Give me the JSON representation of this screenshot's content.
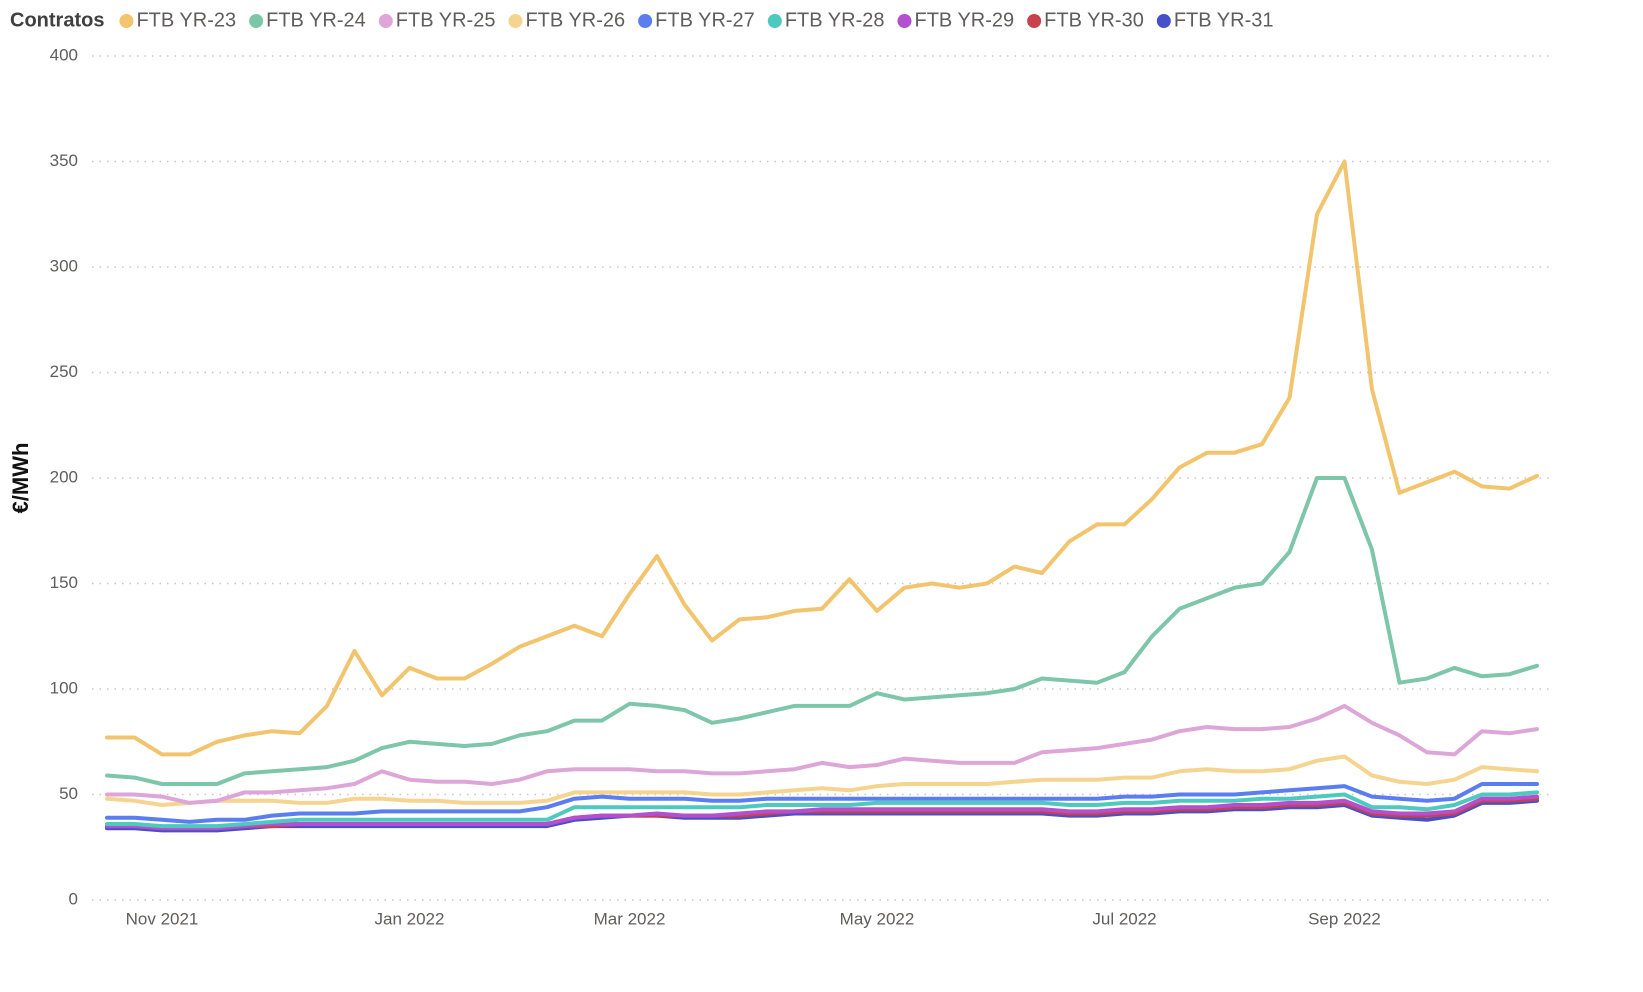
{
  "chart_data": {
    "type": "line",
    "legend_title": "Contratos",
    "y_label": "€/MWh",
    "categories": [
      null,
      null,
      "Nov 2021",
      null,
      null,
      null,
      null,
      null,
      null,
      null,
      null,
      "Jan 2022",
      null,
      null,
      null,
      null,
      null,
      null,
      null,
      "Mar 2022",
      null,
      null,
      null,
      null,
      null,
      null,
      null,
      null,
      "May 2022",
      null,
      null,
      null,
      null,
      null,
      null,
      null,
      null,
      "Jul 2022",
      null,
      null,
      null,
      null,
      null,
      null,
      null,
      "Sep 2022",
      null,
      null,
      null,
      null,
      null,
      null,
      null
    ],
    "ylim": [
      0,
      400
    ],
    "yticks": [
      0,
      50,
      100,
      150,
      200,
      250,
      300,
      350,
      400
    ],
    "grid": true,
    "legend": "top",
    "series": [
      {
        "name": "FTB YR-23",
        "color": "#f2c46d",
        "values": [
          77,
          77,
          69,
          69,
          75,
          78,
          80,
          79,
          92,
          118,
          97,
          110,
          105,
          105,
          112,
          120,
          125,
          130,
          125,
          145,
          163,
          140,
          123,
          133,
          134,
          137,
          138,
          152,
          137,
          148,
          150,
          148,
          150,
          158,
          155,
          170,
          178,
          178,
          190,
          205,
          212,
          212,
          216,
          238,
          325,
          350,
          242,
          193,
          198,
          203,
          196,
          195,
          201
        ]
      },
      {
        "name": "FTB YR-24",
        "color": "#7dc6a9",
        "values": [
          59,
          58,
          55,
          55,
          55,
          60,
          61,
          62,
          63,
          66,
          72,
          75,
          74,
          73,
          74,
          78,
          80,
          85,
          85,
          93,
          92,
          90,
          84,
          86,
          89,
          92,
          92,
          92,
          98,
          95,
          96,
          97,
          98,
          100,
          105,
          104,
          103,
          108,
          125,
          138,
          143,
          148,
          150,
          165,
          200,
          200,
          166,
          103,
          105,
          110,
          106,
          107,
          111
        ]
      },
      {
        "name": "FTB YR-25",
        "color": "#dea6d8",
        "values": [
          50,
          50,
          49,
          46,
          47,
          51,
          51,
          52,
          53,
          55,
          61,
          57,
          56,
          56,
          55,
          57,
          61,
          62,
          62,
          62,
          61,
          61,
          60,
          60,
          61,
          62,
          65,
          63,
          64,
          67,
          66,
          65,
          65,
          65,
          70,
          71,
          72,
          74,
          76,
          80,
          82,
          81,
          81,
          82,
          86,
          92,
          84,
          78,
          70,
          69,
          80,
          79,
          81
        ]
      },
      {
        "name": "FTB YR-26",
        "color": "#f5d48f",
        "values": [
          48,
          47,
          45,
          46,
          47,
          47,
          47,
          46,
          46,
          48,
          48,
          47,
          47,
          46,
          46,
          46,
          47,
          51,
          51,
          51,
          51,
          51,
          50,
          50,
          51,
          52,
          53,
          52,
          54,
          55,
          55,
          55,
          55,
          56,
          57,
          57,
          57,
          58,
          58,
          61,
          62,
          61,
          61,
          62,
          66,
          68,
          59,
          56,
          55,
          57,
          63,
          62,
          61
        ]
      },
      {
        "name": "FTB YR-27",
        "color": "#5a7ef0",
        "values": [
          39,
          39,
          38,
          37,
          38,
          38,
          40,
          41,
          41,
          41,
          42,
          42,
          42,
          42,
          42,
          42,
          44,
          48,
          49,
          48,
          48,
          48,
          47,
          47,
          48,
          48,
          48,
          48,
          48,
          48,
          48,
          48,
          48,
          48,
          48,
          48,
          48,
          49,
          49,
          50,
          50,
          50,
          51,
          52,
          53,
          54,
          49,
          48,
          47,
          48,
          55,
          55,
          55
        ]
      },
      {
        "name": "FTB YR-28",
        "color": "#4ec9c0",
        "values": [
          36,
          36,
          35,
          35,
          35,
          36,
          37,
          38,
          38,
          38,
          38,
          38,
          38,
          38,
          38,
          38,
          38,
          44,
          44,
          44,
          44,
          44,
          44,
          44,
          45,
          45,
          45,
          45,
          46,
          46,
          46,
          46,
          46,
          46,
          46,
          45,
          45,
          46,
          46,
          47,
          47,
          47,
          48,
          48,
          49,
          50,
          44,
          44,
          43,
          45,
          50,
          50,
          51
        ]
      },
      {
        "name": "FTB YR-29",
        "color": "#b44fd0",
        "values": [
          35,
          35,
          34,
          34,
          34,
          35,
          36,
          36,
          36,
          36,
          36,
          36,
          36,
          36,
          36,
          36,
          36,
          39,
          40,
          40,
          41,
          40,
          40,
          41,
          42,
          42,
          43,
          43,
          43,
          43,
          43,
          43,
          43,
          43,
          43,
          42,
          42,
          43,
          43,
          44,
          44,
          45,
          45,
          46,
          46,
          47,
          42,
          41,
          41,
          42,
          48,
          48,
          49
        ]
      },
      {
        "name": "FTB YR-30",
        "color": "#c8414c",
        "values": [
          35,
          35,
          34,
          34,
          34,
          35,
          35,
          36,
          36,
          36,
          36,
          36,
          36,
          36,
          36,
          36,
          36,
          39,
          40,
          40,
          40,
          40,
          40,
          40,
          41,
          42,
          42,
          42,
          42,
          42,
          42,
          42,
          42,
          42,
          42,
          41,
          41,
          42,
          42,
          43,
          43,
          44,
          44,
          45,
          45,
          46,
          41,
          40,
          40,
          41,
          47,
          47,
          48
        ]
      },
      {
        "name": "FTB YR-31",
        "color": "#4650c8",
        "values": [
          34,
          34,
          33,
          33,
          33,
          34,
          35,
          35,
          35,
          35,
          35,
          35,
          35,
          35,
          35,
          35,
          35,
          38,
          39,
          40,
          40,
          39,
          39,
          39,
          40,
          41,
          41,
          41,
          41,
          41,
          41,
          41,
          41,
          41,
          41,
          40,
          40,
          41,
          41,
          42,
          42,
          43,
          43,
          44,
          44,
          45,
          40,
          39,
          38,
          40,
          46,
          46,
          47
        ]
      }
    ]
  }
}
